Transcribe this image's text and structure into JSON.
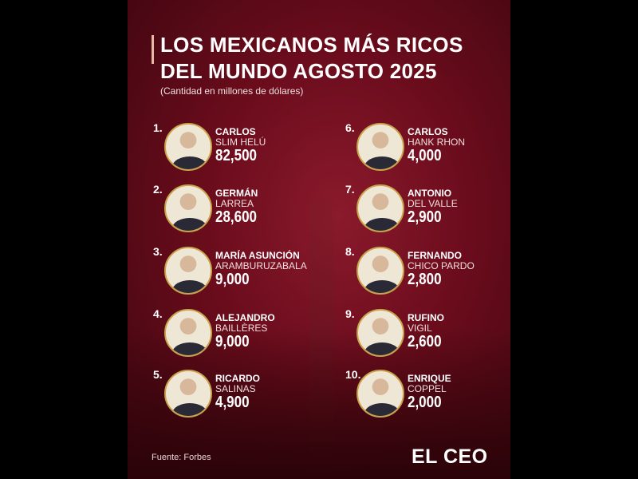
{
  "header": {
    "title_line1": "LOS MEXICANOS MÁS RICOS",
    "title_line2": "DEL MUNDO AGOSTO 2025",
    "subtitle": "(Cantidad en millones de dólares)"
  },
  "entries": [
    {
      "rank": "1.",
      "first": "CARLOS",
      "last": "SLIM HELÚ",
      "value": "82,500"
    },
    {
      "rank": "2.",
      "first": "GERMÁN",
      "last": "LARREA",
      "value": "28,600"
    },
    {
      "rank": "3.",
      "first": "MARÍA ASUNCIÓN",
      "last": "ARAMBURUZABALA",
      "value": "9,000"
    },
    {
      "rank": "4.",
      "first": "ALEJANDRO",
      "last": "BAILLÈRES",
      "value": "9,000"
    },
    {
      "rank": "5.",
      "first": "RICARDO",
      "last": "SALINAS",
      "value": "4,900"
    },
    {
      "rank": "6.",
      "first": "CARLOS",
      "last": "HANK RHON",
      "value": "4,000"
    },
    {
      "rank": "7.",
      "first": "ANTONIO",
      "last": "DEL VALLE",
      "value": "2,900"
    },
    {
      "rank": "8.",
      "first": "FERNANDO",
      "last": "CHICO PARDO",
      "value": "2,800"
    },
    {
      "rank": "9.",
      "first": "RUFINO",
      "last": "VIGIL",
      "value": "2,600"
    },
    {
      "rank": "10.",
      "first": "ENRIQUE",
      "last": "COPPEL",
      "value": "2,000"
    }
  ],
  "footer": {
    "source": "Fuente: Forbes",
    "logo": "EL CEO"
  },
  "colors": {
    "background": "#6a0c1c",
    "accent_ring": "#c9a24a",
    "title_bar": "#e8b9a4"
  }
}
